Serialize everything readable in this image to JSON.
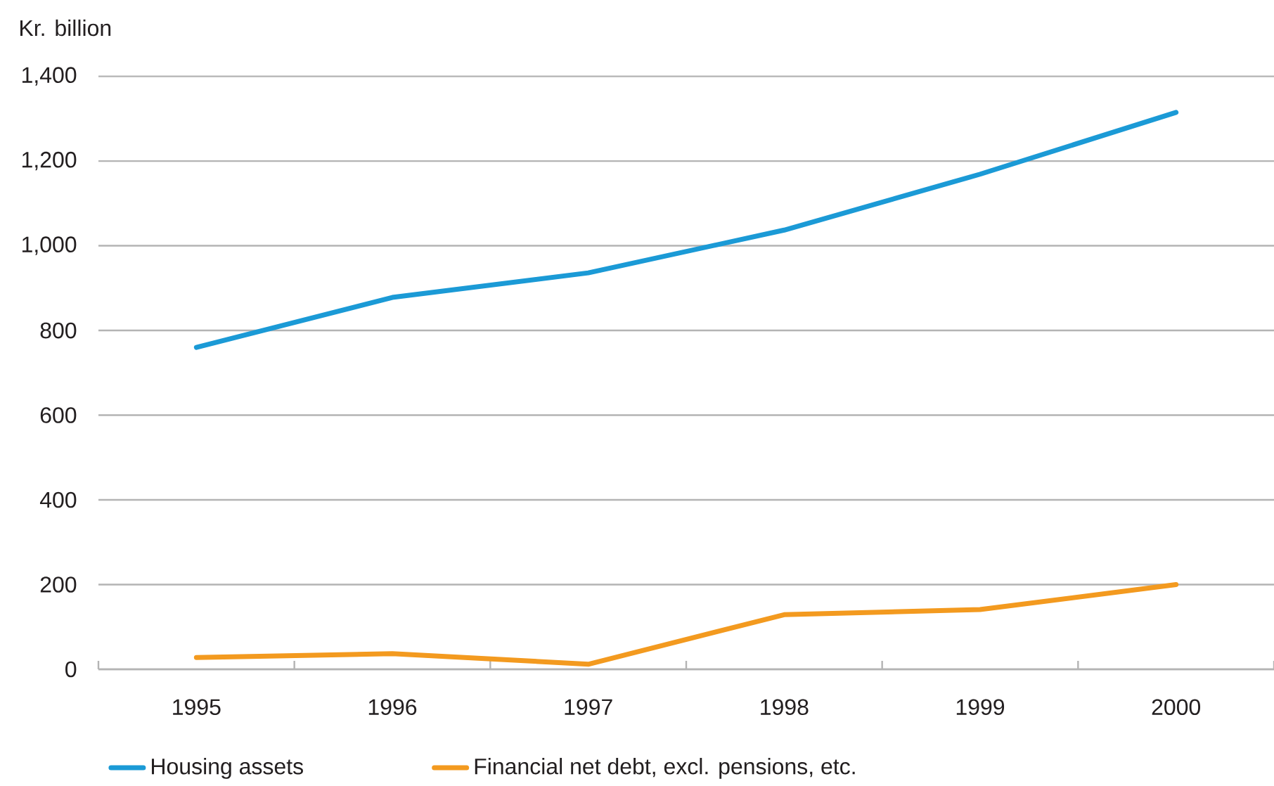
{
  "chart_data": {
    "type": "line",
    "ylabel": "Kr. billion",
    "categories": [
      "1995",
      "1996",
      "1997",
      "1998",
      "1999",
      "2000"
    ],
    "series": [
      {
        "name": "Housing assets",
        "color": "#1b9ad6",
        "values": [
          760,
          878,
          936,
          1037,
          1169,
          1315
        ]
      },
      {
        "name": "Financial net debt, excl. pensions, etc.",
        "color": "#f39a1f",
        "values": [
          28,
          37,
          12,
          129,
          141,
          200
        ]
      }
    ],
    "ylim": [
      0,
      1400
    ],
    "yticks": [
      0,
      200,
      400,
      600,
      800,
      {
        "value": 1000,
        "label": "1,000"
      },
      {
        "value": 1200,
        "label": "1,200"
      },
      {
        "value": 1400,
        "label": "1,400"
      }
    ],
    "grid": "y",
    "legend": "bottom left",
    "marker": "none",
    "line_style": "solid"
  }
}
